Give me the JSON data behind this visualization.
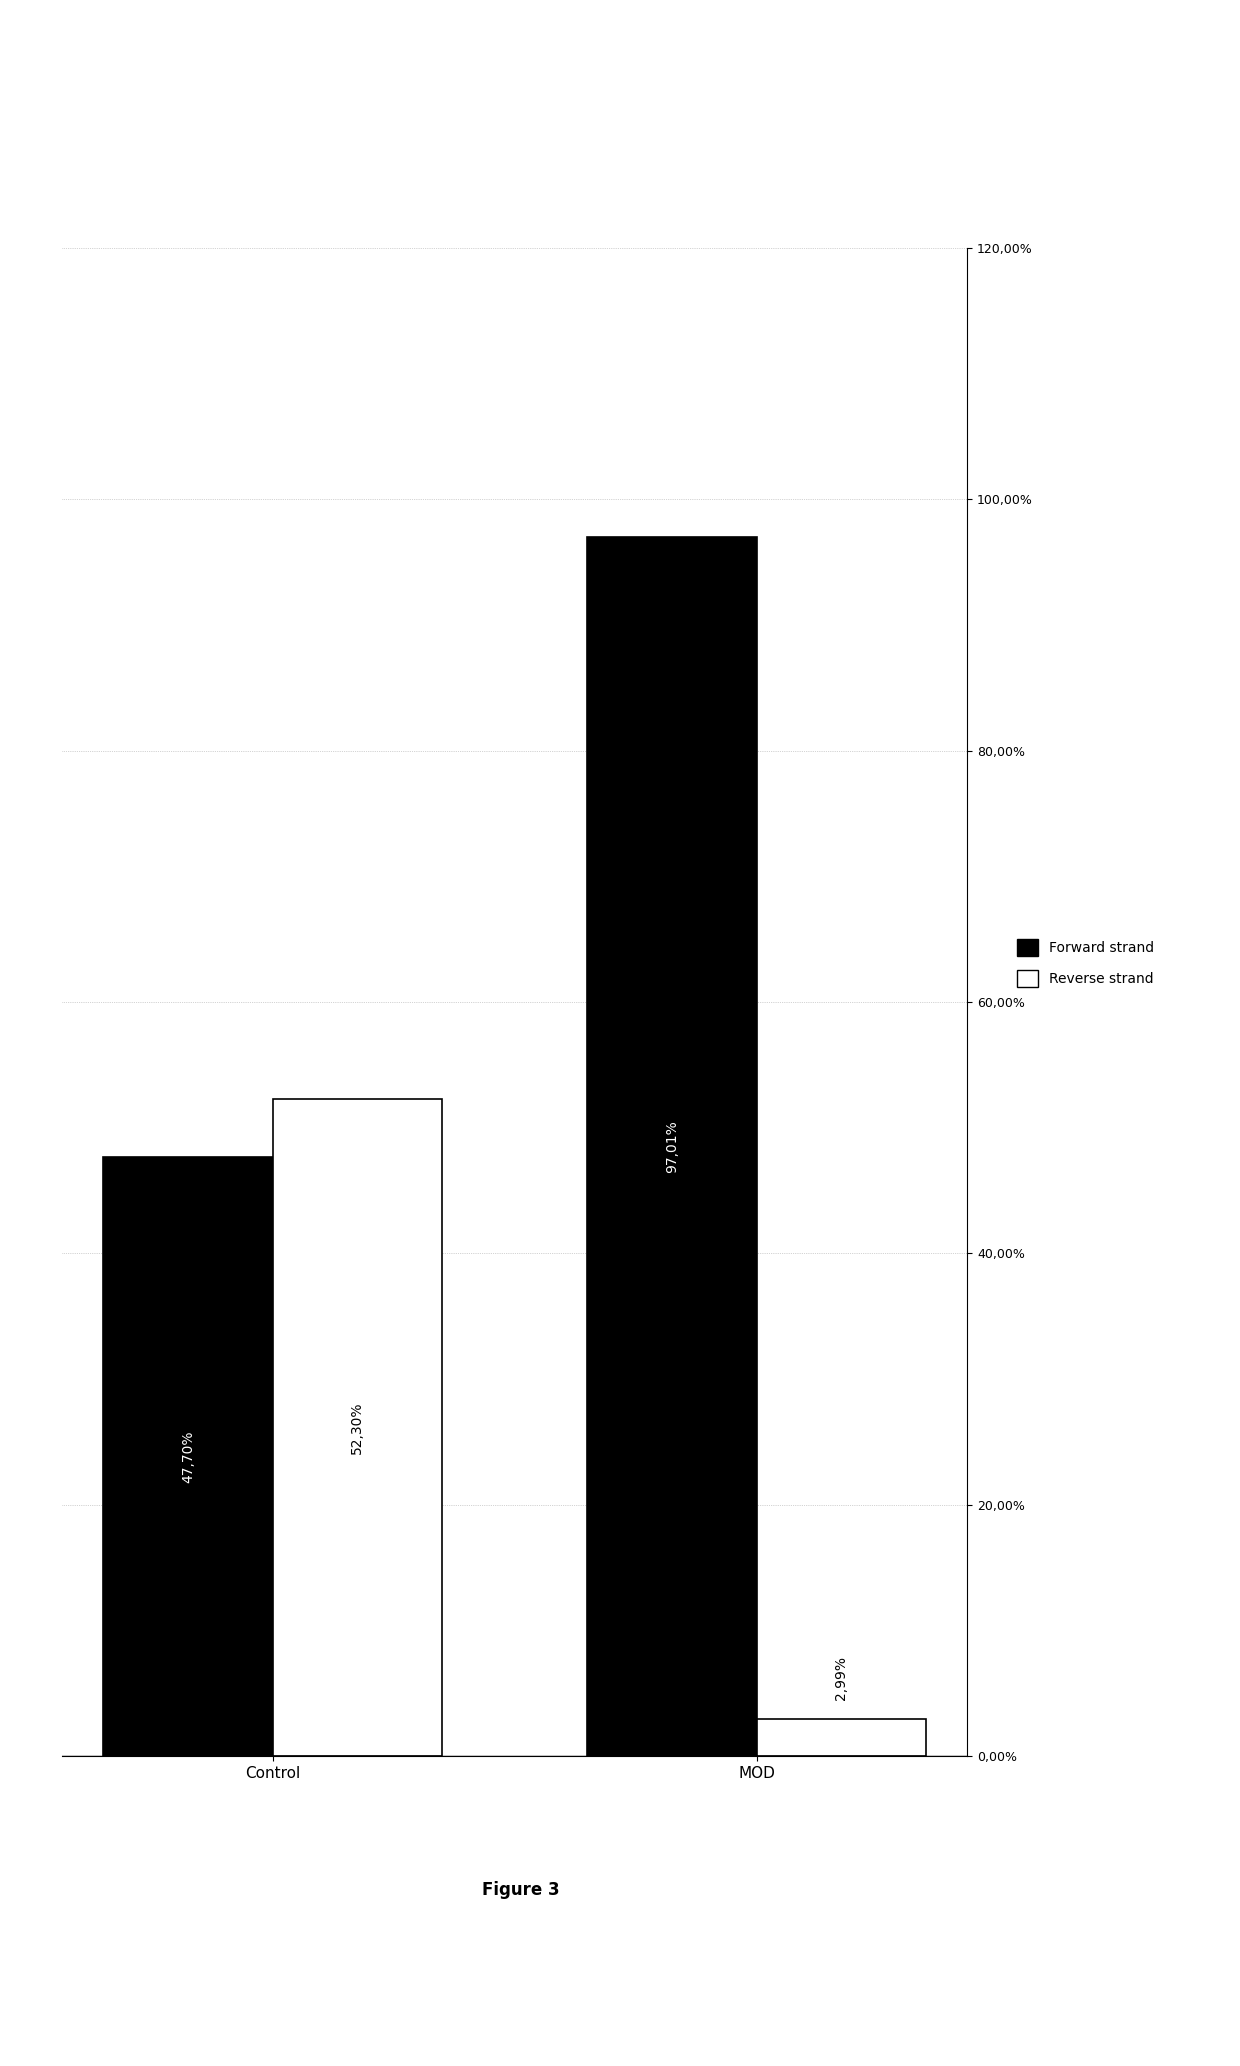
{
  "categories": [
    "Control",
    "MOD"
  ],
  "forward_strand": [
    47.7,
    97.01
  ],
  "reverse_strand": [
    52.3,
    2.99
  ],
  "forward_color": "#000000",
  "reverse_color": "#ffffff",
  "bar_edge_color": "#000000",
  "xlim": [
    0,
    120
  ],
  "xticks": [
    0,
    20,
    40,
    60,
    80,
    100,
    120
  ],
  "xtick_labels": [
    "0,00%",
    "20,00%",
    "40,00%",
    "60,00%",
    "80,00%",
    "100,00%",
    "120,00%"
  ],
  "forward_labels": [
    "47,70%",
    "97,01%"
  ],
  "reverse_labels": [
    "52,30%",
    "2,99%"
  ],
  "legend_forward": "Forward strand",
  "legend_reverse": "Reverse strand",
  "figure_caption": "Figure 3",
  "background_color": "#ffffff",
  "bar_width": 0.35,
  "label_fontsize": 10,
  "tick_fontsize": 9,
  "caption_fontsize": 12,
  "legend_fontsize": 10
}
